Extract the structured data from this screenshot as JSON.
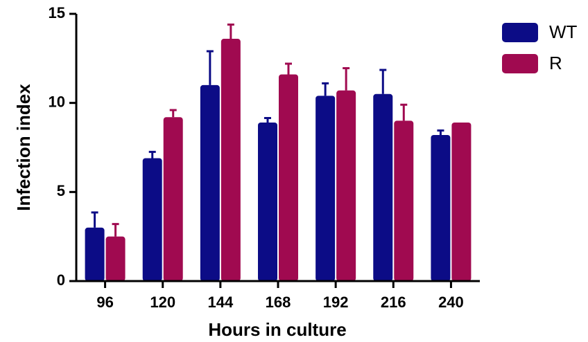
{
  "chart_data": {
    "type": "bar",
    "x_label": "Hours in culture",
    "y_label": "Infection index",
    "categories": [
      "96",
      "120",
      "144",
      "168",
      "192",
      "216",
      "240"
    ],
    "series": [
      {
        "name": "WT",
        "color": "#0c0c86",
        "values": [
          3.0,
          6.9,
          11.0,
          8.9,
          10.4,
          10.5,
          8.2
        ],
        "errors": [
          0.85,
          0.35,
          1.9,
          0.25,
          0.7,
          1.35,
          0.25
        ]
      },
      {
        "name": "R",
        "color": "#a00a50",
        "values": [
          2.5,
          9.2,
          13.6,
          11.6,
          10.7,
          9.0,
          8.9
        ],
        "errors": [
          0.7,
          0.4,
          0.8,
          0.6,
          1.25,
          0.9,
          null
        ]
      }
    ],
    "ylim": [
      0,
      15
    ],
    "yticks": [
      0,
      5,
      10,
      15
    ],
    "legend": "right"
  }
}
